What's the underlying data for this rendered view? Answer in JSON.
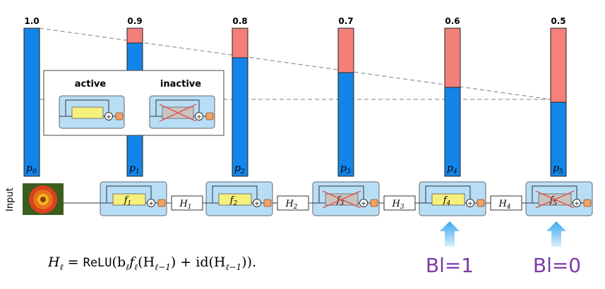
{
  "survival": {
    "values": [
      "1.0",
      "0.9",
      "0.8",
      "0.7",
      "0.6",
      "0.5"
    ],
    "probabilities": [
      1.0,
      0.9,
      0.8,
      0.7,
      0.6,
      0.5
    ],
    "bar_labels": [
      "p",
      "p",
      "p",
      "p",
      "p",
      "p"
    ],
    "bar_subscripts": [
      "0",
      "1",
      "2",
      "3",
      "4",
      "5"
    ]
  },
  "legend": {
    "active_label": "active",
    "inactive_label": "inactive"
  },
  "pipeline": {
    "input_label": "Input",
    "blocks": [
      {
        "f": "f",
        "sub": "1",
        "active": true
      },
      {
        "f": "f",
        "sub": "2",
        "active": true
      },
      {
        "f": "f",
        "sub": "3",
        "active": false
      },
      {
        "f": "f",
        "sub": "4",
        "active": true
      },
      {
        "f": "f",
        "sub": "5",
        "active": false
      }
    ],
    "hidden": [
      {
        "h": "H",
        "sub": "1"
      },
      {
        "h": "H",
        "sub": "2"
      },
      {
        "h": "H",
        "sub": "3"
      },
      {
        "h": "H",
        "sub": "4"
      }
    ],
    "sum_symbol": "+"
  },
  "annotations": {
    "bl1": "Bl=1",
    "bl0": "Bl=0"
  },
  "formula": {
    "lhs": "H",
    "lhs_sub": "ℓ",
    "eq": " = ",
    "relu": "ReLU",
    "rest1": "(b",
    "b_sub": "ℓ",
    "f": "f",
    "f_sub": "ℓ",
    "rest2": "(H",
    "h1_sub": "ℓ−1",
    "rest3": ") + id(H",
    "h2_sub": "ℓ−1",
    "rest4": ")).",
    "id_text": ""
  },
  "colors": {
    "survive": "#1385e8",
    "drop": "#f4807a",
    "block_bg": "#b8def5",
    "f_box": "#f5f07c",
    "orange": "#f2a064",
    "bl_text": "#7c3aa8",
    "arrow": "#5ab6ee"
  }
}
